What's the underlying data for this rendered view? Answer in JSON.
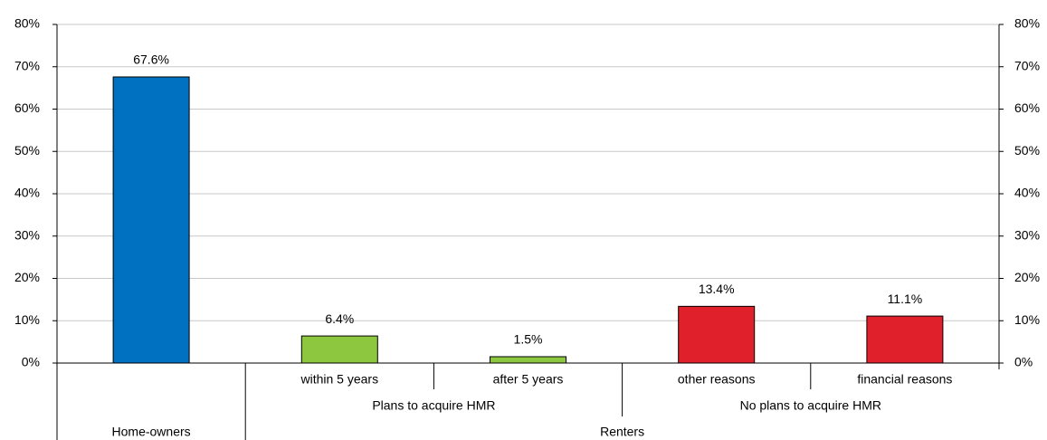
{
  "chart_data": {
    "type": "bar",
    "categories": [
      null,
      "within 5 years",
      "after 5 years",
      "other reasons",
      "financial reasons"
    ],
    "values": [
      67.6,
      6.4,
      1.5,
      13.4,
      11.1
    ],
    "value_labels": [
      "67.6%",
      "6.4%",
      "1.5%",
      "13.4%",
      "11.1%"
    ],
    "colors": [
      "#0070c0",
      "#8dc63f",
      "#8dc63f",
      "#e0202a",
      "#e0202a"
    ],
    "groups": [
      {
        "name": "Home-owners"
      },
      {
        "name": "Renters",
        "subgroups": [
          {
            "name": "Plans to acquire HMR",
            "categories": [
              "within 5 years",
              "after 5 years"
            ]
          },
          {
            "name": "No plans to acquire HMR",
            "categories": [
              "other reasons",
              "financial reasons"
            ]
          }
        ]
      }
    ],
    "ylim": [
      0,
      80
    ],
    "yticks": [
      {
        "value": 0,
        "label": "0%"
      },
      {
        "value": 10,
        "label": "10%"
      },
      {
        "value": 20,
        "label": "20%"
      },
      {
        "value": 30,
        "label": "30%"
      },
      {
        "value": 40,
        "label": "40%"
      },
      {
        "value": 50,
        "label": "50%"
      },
      {
        "value": 60,
        "label": "60%"
      },
      {
        "value": 70,
        "label": "70%"
      },
      {
        "value": 80,
        "label": "80%"
      }
    ],
    "grid": true
  }
}
